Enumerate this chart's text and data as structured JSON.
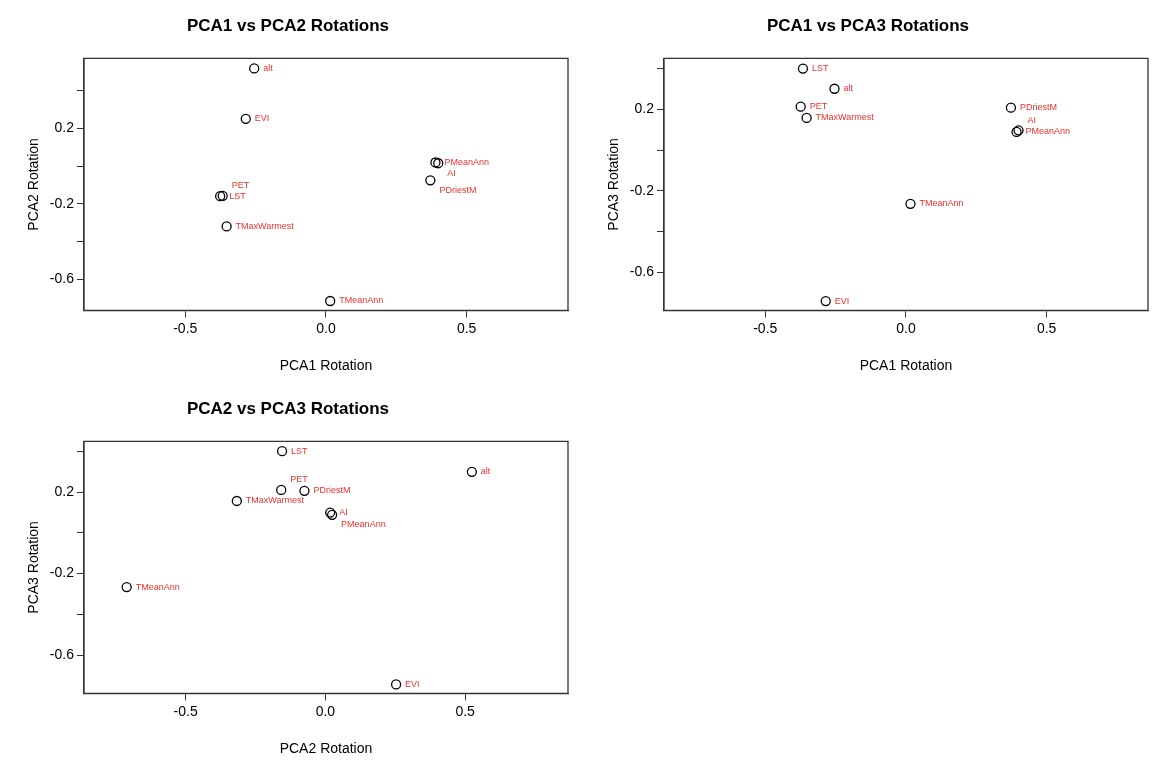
{
  "chart_data": [
    {
      "type": "scatter",
      "title": "PCA1 vs PCA2 Rotations",
      "xlabel": "PCA1 Rotation",
      "ylabel": "PCA2 Rotation",
      "marker": "circle",
      "x": [
        -0.255,
        -0.285,
        0.389,
        0.399,
        0.371,
        -0.376,
        -0.367,
        -0.353,
        0.015
      ],
      "series": [
        {
          "color": "#000000",
          "values": [
            0.52,
            0.252,
            0.02,
            0.016,
            -0.075,
            -0.159,
            -0.157,
            -0.32,
            -0.716
          ]
        }
      ],
      "xlim": [
        -0.86,
        0.86
      ],
      "ylim": [
        -0.766,
        0.573
      ],
      "xticks": [
        {
          "value": -0.5,
          "label": "-0.5"
        },
        {
          "value": 0,
          "label": "0.0"
        },
        {
          "value": 0.5,
          "label": "0.5"
        }
      ],
      "yticks": [
        {
          "value": 0.4,
          "label": null
        },
        0.2,
        {
          "value": 0,
          "label": null
        },
        -0.2,
        {
          "value": -0.4,
          "label": null
        },
        -0.6
      ],
      "annotations": [
        {
          "text": "alt",
          "x": -0.255,
          "y": 0.52
        },
        {
          "text": "EVI",
          "x": -0.285,
          "y": 0.252
        },
        {
          "text": "PMeanAnn",
          "x": 0.389,
          "y": 0.02
        },
        {
          "text": "AI",
          "x": 0.399,
          "y": 0.016
        },
        {
          "text": "PDriestM",
          "x": 0.371,
          "y": -0.075
        },
        {
          "text": "LST",
          "x": -0.376,
          "y": -0.159
        },
        {
          "text": "PET",
          "x": -0.367,
          "y": -0.157
        },
        {
          "text": "TMaxWarmest",
          "x": -0.353,
          "y": -0.32
        },
        {
          "text": "TMeanAnn",
          "x": 0.015,
          "y": -0.716
        }
      ]
    },
    {
      "type": "scatter",
      "title": "PCA1 vs PCA3 Rotations",
      "xlabel": "PCA1 Rotation",
      "ylabel": "PCA3 Rotation",
      "marker": "circle",
      "x": [
        -0.366,
        -0.254,
        -0.374,
        -0.353,
        0.373,
        0.393,
        0.4,
        0.016,
        -0.285
      ],
      "series": [
        {
          "color": "#000000",
          "values": [
            0.4,
            0.301,
            0.213,
            0.158,
            0.208,
            0.089,
            0.097,
            -0.264,
            -0.741
          ]
        }
      ],
      "xlim": [
        -0.86,
        0.86
      ],
      "ylim": [
        -0.787,
        0.45
      ],
      "xticks": [
        {
          "value": -0.5,
          "label": "-0.5"
        },
        {
          "value": 0,
          "label": "0.0"
        },
        {
          "value": 0.5,
          "label": "0.5"
        }
      ],
      "yticks": [
        {
          "value": 0.4,
          "label": null
        },
        0.2,
        {
          "value": 0,
          "label": null
        },
        -0.2,
        {
          "value": -0.4,
          "label": null
        },
        -0.6
      ],
      "annotations": [
        {
          "text": "LST",
          "x": -0.366,
          "y": 0.4
        },
        {
          "text": "alt",
          "x": -0.254,
          "y": 0.301
        },
        {
          "text": "PET",
          "x": -0.374,
          "y": 0.213
        },
        {
          "text": "TMaxWarmest",
          "x": -0.353,
          "y": 0.158
        },
        {
          "text": "PDriestM",
          "x": 0.373,
          "y": 0.208
        },
        {
          "text": "PMeanAnn",
          "x": 0.393,
          "y": 0.089
        },
        {
          "text": "AI",
          "x": 0.4,
          "y": 0.097
        },
        {
          "text": "TMeanAnn",
          "x": 0.016,
          "y": -0.264
        },
        {
          "text": "EVI",
          "x": -0.285,
          "y": -0.741
        }
      ]
    },
    {
      "type": "scatter",
      "title": "PCA2 vs PCA3 Rotations",
      "xlabel": "PCA2 Rotation",
      "ylabel": "PCA3 Rotation",
      "marker": "circle",
      "x": [
        -0.155,
        0.524,
        -0.158,
        -0.075,
        -0.317,
        0.017,
        0.024,
        -0.711,
        0.253
      ],
      "series": [
        {
          "color": "#000000",
          "values": [
            0.4,
            0.299,
            0.21,
            0.206,
            0.156,
            0.099,
            0.088,
            -0.266,
            -0.743
          ]
        }
      ],
      "xlim": [
        -0.864,
        0.868
      ],
      "ylim": [
        -0.787,
        0.448
      ],
      "xticks": [
        {
          "value": -0.5,
          "label": "-0.5"
        },
        {
          "value": 0,
          "label": "0.0"
        },
        {
          "value": 0.5,
          "label": "0.5"
        }
      ],
      "yticks": [
        {
          "value": 0.4,
          "label": null
        },
        0.2,
        {
          "value": 0,
          "label": null
        },
        -0.2,
        {
          "value": -0.4,
          "label": null
        },
        -0.6
      ],
      "annotations": [
        {
          "text": "LST",
          "x": -0.155,
          "y": 0.4
        },
        {
          "text": "alt",
          "x": 0.524,
          "y": 0.299
        },
        {
          "text": "PET",
          "x": -0.158,
          "y": 0.21
        },
        {
          "text": "PDriestM",
          "x": -0.075,
          "y": 0.206
        },
        {
          "text": "TMaxWarmest",
          "x": -0.317,
          "y": 0.156
        },
        {
          "text": "AI",
          "x": 0.017,
          "y": 0.099
        },
        {
          "text": "PMeanAnn",
          "x": 0.024,
          "y": 0.088
        },
        {
          "text": "TMeanAnn",
          "x": -0.711,
          "y": -0.266
        },
        {
          "text": "EVI",
          "x": 0.253,
          "y": -0.743
        }
      ]
    }
  ]
}
